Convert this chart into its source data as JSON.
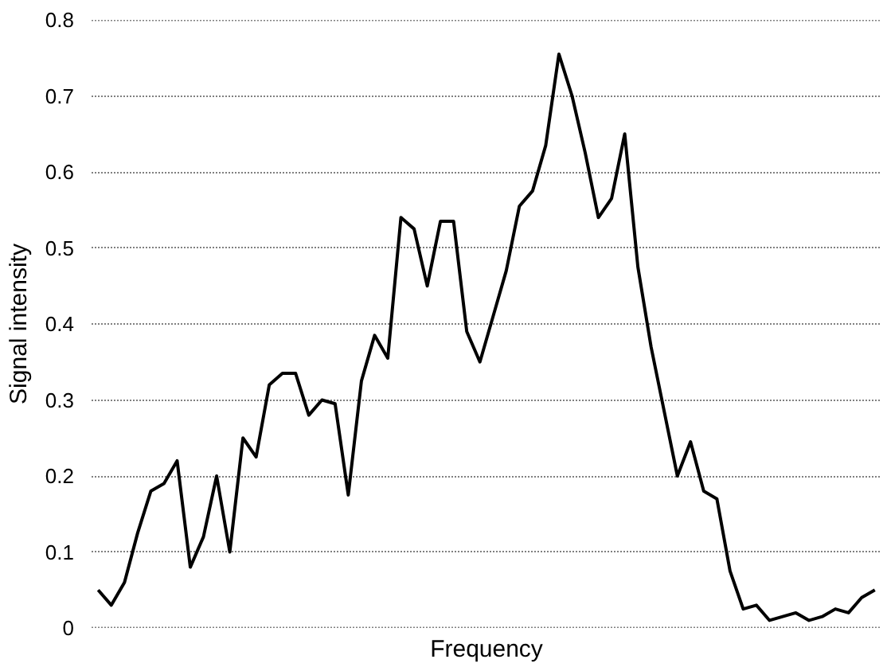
{
  "chart_data": {
    "type": "line",
    "xlabel": "Frequency",
    "ylabel": "Signal intensity",
    "categories": [
      null,
      null,
      null,
      null,
      null,
      null,
      null,
      null,
      null,
      null,
      null,
      null,
      null,
      null,
      null,
      null,
      null,
      null,
      null,
      null,
      null,
      null,
      null,
      null,
      null,
      null,
      null,
      null,
      null,
      null,
      null,
      null,
      null,
      null,
      null,
      null,
      null,
      null,
      null,
      null,
      null,
      null,
      null,
      null,
      null,
      null,
      null,
      null,
      null,
      null,
      null,
      null,
      null,
      null,
      null,
      null,
      null,
      null,
      null,
      null
    ],
    "series": [
      {
        "color": "#000000",
        "values": [
          0.05,
          0.03,
          0.06,
          0.125,
          0.18,
          0.19,
          0.22,
          0.08,
          0.12,
          0.2,
          0.1,
          0.25,
          0.225,
          0.32,
          0.335,
          0.335,
          0.28,
          0.3,
          0.295,
          0.175,
          0.325,
          0.385,
          0.355,
          0.54,
          0.525,
          0.45,
          0.535,
          0.535,
          0.39,
          0.35,
          0.41,
          0.47,
          0.555,
          0.575,
          0.635,
          0.755,
          0.7,
          0.625,
          0.54,
          0.565,
          0.65,
          0.475,
          0.37,
          0.285,
          0.2,
          0.245,
          0.18,
          0.17,
          0.075,
          0.025,
          0.03,
          0.01,
          0.015,
          0.02,
          0.01,
          0.015,
          0.025,
          0.02,
          0.04,
          0.05
        ]
      }
    ],
    "ylim": [
      0,
      0.8
    ],
    "yticks": [
      0,
      0.1,
      0.2,
      0.3,
      0.4,
      0.5,
      0.6,
      0.7,
      0.8
    ],
    "tick_labels": "y",
    "grid": "y",
    "marker": "none",
    "line_style": "solid"
  }
}
